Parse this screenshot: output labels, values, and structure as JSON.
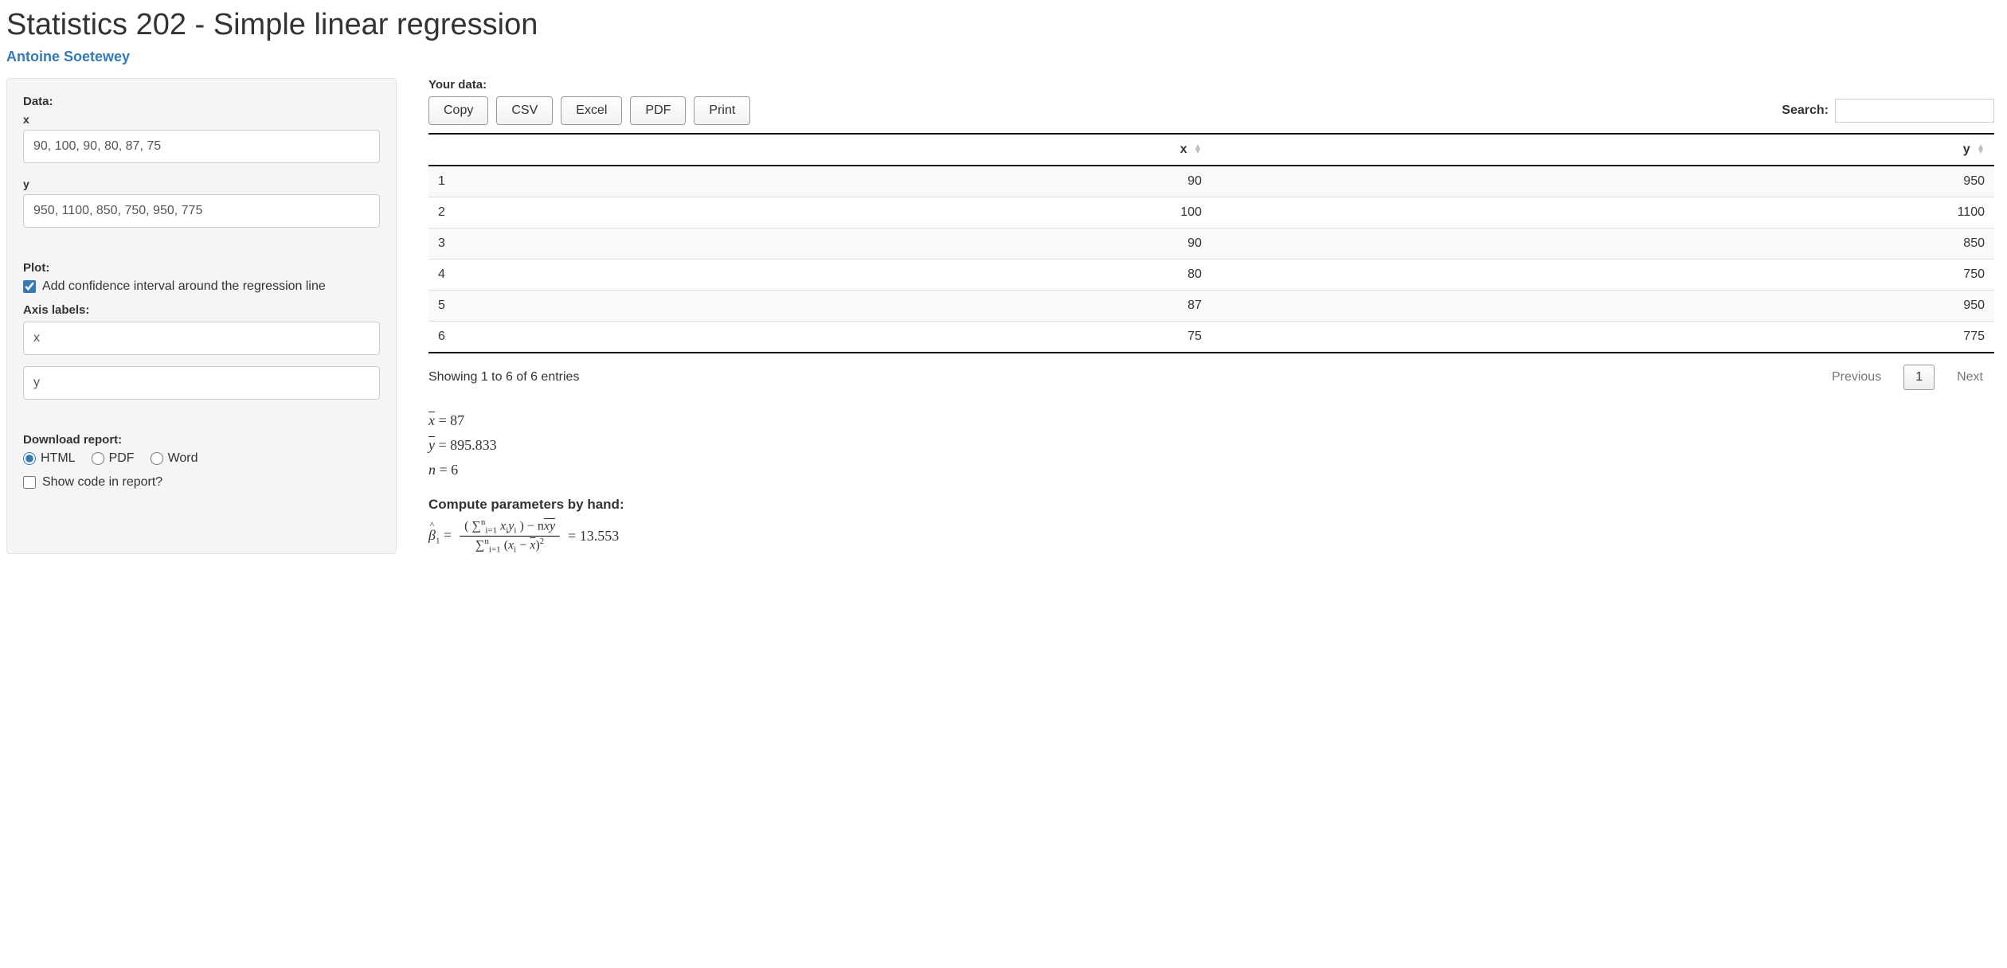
{
  "page": {
    "title": "Statistics 202 - Simple linear regression",
    "author": "Antoine Soetewey"
  },
  "sidebar": {
    "data_label": "Data:",
    "x_label": "x",
    "x_value": "90, 100, 90, 80, 87, 75",
    "y_label": "y",
    "y_value": "950, 1100, 850, 750, 950, 775",
    "plot_label": "Plot:",
    "ci_checkbox": "Add confidence interval around the regression line",
    "ci_checked": true,
    "axis_labels": "Axis labels:",
    "axis_x_value": "x",
    "axis_y_value": "y",
    "download_label": "Download report:",
    "formats": [
      "HTML",
      "PDF",
      "Word"
    ],
    "format_selected": "HTML",
    "show_code": "Show code in report?",
    "show_code_checked": false
  },
  "main": {
    "your_data": "Your data:",
    "buttons": [
      "Copy",
      "CSV",
      "Excel",
      "PDF",
      "Print"
    ],
    "search_label": "Search:",
    "search_value": "",
    "columns": [
      "x",
      "y"
    ],
    "rows": [
      {
        "idx": "1",
        "x": "90",
        "y": "950"
      },
      {
        "idx": "2",
        "x": "100",
        "y": "1100"
      },
      {
        "idx": "3",
        "x": "90",
        "y": "850"
      },
      {
        "idx": "4",
        "x": "80",
        "y": "750"
      },
      {
        "idx": "5",
        "x": "87",
        "y": "950"
      },
      {
        "idx": "6",
        "x": "75",
        "y": "775"
      }
    ],
    "info": "Showing 1 to 6 of 6 entries",
    "prev": "Previous",
    "page": "1",
    "next": "Next",
    "stats": {
      "xbar": "87",
      "ybar": "895.833",
      "n": "6"
    },
    "compute_hdr": "Compute parameters by hand:",
    "beta1_value": "13.553"
  }
}
